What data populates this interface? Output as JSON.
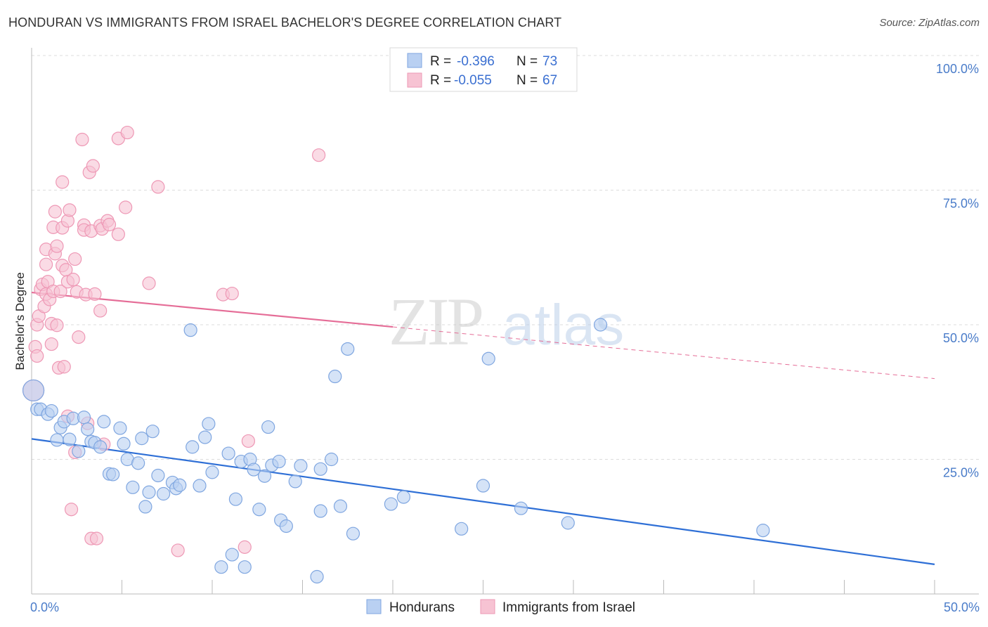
{
  "header": {
    "title": "HONDURAN VS IMMIGRANTS FROM ISRAEL BACHELOR'S DEGREE CORRELATION CHART",
    "source": "Source: ZipAtlas.com"
  },
  "watermark": {
    "zip": "ZIP",
    "atlas": "atlas"
  },
  "colors": {
    "blue_fill": "#b9d0f2",
    "blue_stroke": "#7fa6e0",
    "blue_line": "#2e6fd6",
    "pink_fill": "#f7c3d3",
    "pink_stroke": "#ee98b5",
    "pink_line": "#e56d97",
    "grid": "#dddddd",
    "tick_label": "#4a7cc9"
  },
  "chart_data": {
    "type": "scatter",
    "title": "HONDURAN VS IMMIGRANTS FROM ISRAEL BACHELOR'S DEGREE CORRELATION CHART",
    "xlabel": "",
    "ylabel": "Bachelor's Degree",
    "xlim": [
      0,
      50
    ],
    "ylim": [
      0,
      100
    ],
    "x_tick_labels": [
      "0.0%",
      "50.0%"
    ],
    "y_ticks": [
      25,
      50,
      75,
      100
    ],
    "y_tick_labels": [
      "25.0%",
      "50.0%",
      "75.0%",
      "100.0%"
    ],
    "legend_position": "top-center",
    "stats": [
      {
        "name": "Hondurans",
        "r_label": "R =",
        "r": "-0.396",
        "n_label": "N =",
        "n": "73"
      },
      {
        "name": "Immigrants from Israel",
        "r_label": "R =",
        "r": "-0.055",
        "n_label": "N =",
        "n": "67"
      }
    ],
    "series": [
      {
        "name": "Hondurans",
        "trend": {
          "x0": 0,
          "y0": 28.8,
          "x1": 50,
          "y1": 5.5
        },
        "points": [
          [
            0.1,
            37.8
          ],
          [
            0.3,
            34.3
          ],
          [
            0.5,
            34.3
          ],
          [
            0.9,
            33.4
          ],
          [
            1.1,
            34.0
          ],
          [
            1.4,
            28.6
          ],
          [
            1.6,
            30.9
          ],
          [
            1.8,
            32.0
          ],
          [
            2.1,
            28.7
          ],
          [
            2.3,
            32.6
          ],
          [
            2.6,
            26.5
          ],
          [
            2.9,
            32.8
          ],
          [
            3.1,
            30.6
          ],
          [
            3.3,
            28.3
          ],
          [
            3.5,
            28.1
          ],
          [
            3.8,
            27.3
          ],
          [
            4.0,
            32.0
          ],
          [
            4.3,
            22.3
          ],
          [
            4.5,
            22.2
          ],
          [
            4.9,
            30.8
          ],
          [
            5.1,
            27.9
          ],
          [
            5.3,
            25.0
          ],
          [
            5.6,
            19.8
          ],
          [
            5.9,
            24.3
          ],
          [
            6.1,
            28.9
          ],
          [
            6.3,
            16.2
          ],
          [
            6.5,
            18.9
          ],
          [
            6.7,
            30.2
          ],
          [
            7.0,
            22.0
          ],
          [
            7.3,
            18.6
          ],
          [
            7.8,
            20.7
          ],
          [
            8.0,
            19.6
          ],
          [
            8.2,
            20.2
          ],
          [
            8.8,
            49.0
          ],
          [
            8.9,
            27.3
          ],
          [
            9.3,
            20.1
          ],
          [
            9.6,
            29.1
          ],
          [
            9.8,
            31.6
          ],
          [
            10.0,
            22.6
          ],
          [
            10.5,
            5.0
          ],
          [
            10.9,
            26.1
          ],
          [
            11.1,
            7.3
          ],
          [
            11.3,
            17.6
          ],
          [
            11.6,
            24.6
          ],
          [
            11.8,
            5.0
          ],
          [
            12.1,
            25.0
          ],
          [
            12.3,
            23.1
          ],
          [
            12.6,
            15.7
          ],
          [
            12.9,
            21.9
          ],
          [
            13.1,
            31.0
          ],
          [
            13.3,
            23.9
          ],
          [
            13.7,
            24.6
          ],
          [
            13.8,
            13.7
          ],
          [
            14.1,
            12.6
          ],
          [
            14.6,
            20.9
          ],
          [
            14.9,
            23.8
          ],
          [
            15.8,
            3.2
          ],
          [
            16.0,
            15.4
          ],
          [
            16.0,
            23.2
          ],
          [
            16.6,
            25.0
          ],
          [
            16.8,
            40.4
          ],
          [
            17.1,
            16.3
          ],
          [
            17.5,
            45.5
          ],
          [
            17.8,
            11.2
          ],
          [
            19.9,
            16.7
          ],
          [
            20.6,
            18.0
          ],
          [
            23.8,
            12.1
          ],
          [
            25.0,
            20.1
          ],
          [
            25.3,
            43.7
          ],
          [
            27.1,
            15.9
          ],
          [
            29.7,
            13.2
          ],
          [
            40.5,
            11.8
          ],
          [
            31.5,
            50.0
          ]
        ]
      },
      {
        "name": "Immigrants from Israel",
        "trend": {
          "x0": 0,
          "y0": 56.0,
          "x1": 20,
          "y1": 49.6,
          "x2": 50,
          "y2": 40.0
        },
        "points": [
          [
            0.1,
            37.8
          ],
          [
            0.2,
            45.9
          ],
          [
            0.3,
            50.0
          ],
          [
            0.4,
            51.6
          ],
          [
            0.5,
            56.6
          ],
          [
            0.6,
            57.5
          ],
          [
            0.7,
            53.4
          ],
          [
            0.8,
            55.7
          ],
          [
            0.8,
            61.2
          ],
          [
            0.8,
            64.0
          ],
          [
            0.9,
            58.0
          ],
          [
            1.0,
            54.7
          ],
          [
            1.1,
            50.2
          ],
          [
            1.1,
            46.4
          ],
          [
            1.2,
            68.1
          ],
          [
            1.2,
            56.2
          ],
          [
            1.3,
            71.0
          ],
          [
            1.3,
            63.2
          ],
          [
            1.4,
            64.6
          ],
          [
            1.4,
            49.9
          ],
          [
            1.5,
            42.0
          ],
          [
            1.6,
            56.2
          ],
          [
            1.7,
            76.5
          ],
          [
            1.7,
            68.0
          ],
          [
            1.7,
            61.0
          ],
          [
            1.8,
            42.2
          ],
          [
            1.9,
            60.2
          ],
          [
            2.0,
            33.0
          ],
          [
            2.0,
            58.0
          ],
          [
            2.0,
            69.3
          ],
          [
            2.1,
            71.3
          ],
          [
            2.2,
            15.7
          ],
          [
            2.3,
            58.4
          ],
          [
            2.4,
            26.3
          ],
          [
            2.4,
            62.2
          ],
          [
            2.5,
            56.1
          ],
          [
            2.6,
            47.7
          ],
          [
            2.8,
            84.4
          ],
          [
            2.9,
            68.5
          ],
          [
            2.9,
            67.6
          ],
          [
            3.0,
            55.6
          ],
          [
            3.1,
            31.7
          ],
          [
            3.2,
            78.3
          ],
          [
            3.3,
            10.3
          ],
          [
            3.3,
            67.4
          ],
          [
            3.4,
            79.5
          ],
          [
            3.5,
            55.7
          ],
          [
            3.6,
            10.3
          ],
          [
            3.8,
            68.4
          ],
          [
            3.8,
            52.6
          ],
          [
            3.9,
            67.8
          ],
          [
            4.0,
            27.8
          ],
          [
            4.2,
            69.3
          ],
          [
            4.3,
            68.6
          ],
          [
            4.8,
            84.6
          ],
          [
            4.8,
            66.8
          ],
          [
            5.2,
            71.8
          ],
          [
            5.3,
            85.7
          ],
          [
            6.5,
            57.7
          ],
          [
            7.0,
            75.6
          ],
          [
            8.1,
            8.1
          ],
          [
            10.6,
            55.6
          ],
          [
            11.1,
            55.8
          ],
          [
            11.8,
            8.7
          ],
          [
            12.0,
            28.4
          ],
          [
            15.9,
            81.5
          ],
          [
            0.3,
            44.2
          ]
        ]
      }
    ]
  }
}
